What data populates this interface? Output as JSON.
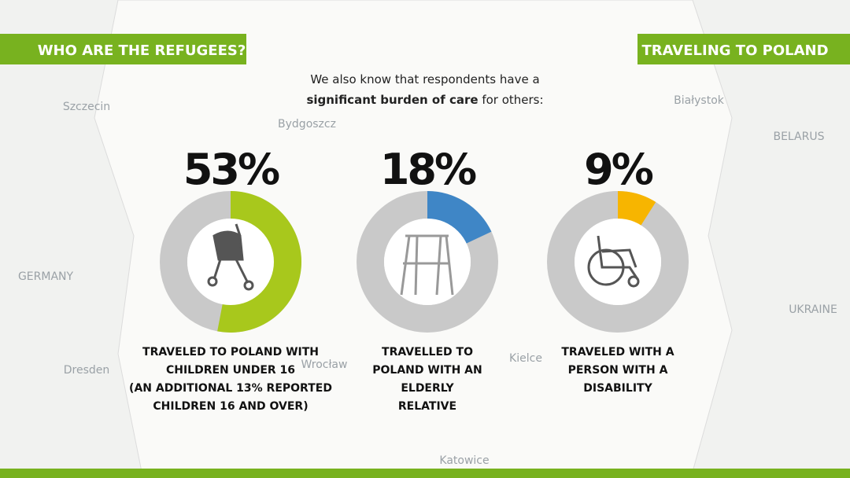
{
  "header": {
    "left": "WHO ARE THE REFUGEES?",
    "right": "TRAVELING TO POLAND"
  },
  "intro": {
    "line1": "We also know that respondents have a",
    "bold": "significant burden of care",
    "rest": "for others:"
  },
  "map_labels": [
    "Szczecin",
    "Bydgoszcz",
    "GERMANY",
    "BELARUS",
    "UKRAINE",
    "Białystok",
    "Kielce",
    "Wrocław",
    "Dresden",
    "Katowice"
  ],
  "stats": [
    {
      "value": 53,
      "value_label": "53%",
      "color": "#a8c81c",
      "caption": [
        "TRAVELED TO POLAND WITH",
        "CHILDREN UNDER 16",
        "(AN ADDITIONAL 13% REPORTED",
        "CHILDREN 16 AND OVER)"
      ]
    },
    {
      "value": 18,
      "value_label": "18%",
      "color": "#3f86c6",
      "caption": [
        "TRAVELLED TO",
        "POLAND WITH AN",
        "ELDERLY",
        "RELATIVE"
      ]
    },
    {
      "value": 9,
      "value_label": "9%",
      "color": "#f7b500",
      "caption": [
        "TRAVELED WITH A",
        "PERSON WITH A",
        "DISABILITY"
      ]
    }
  ]
}
